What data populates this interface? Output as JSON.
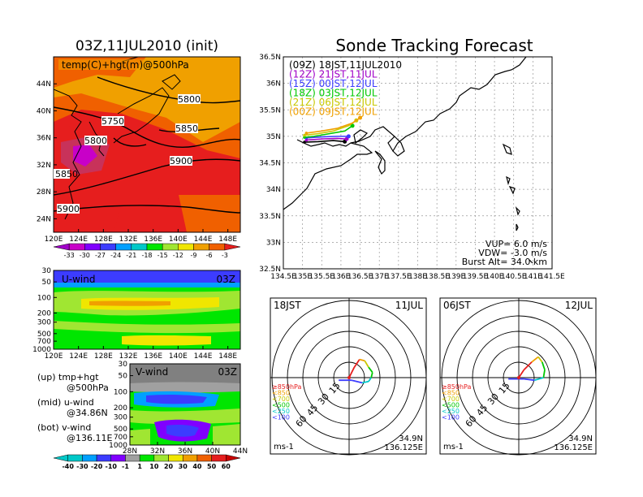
{
  "map_panel": {
    "title": "03Z,11JUL2010 (init)",
    "label": "temp(C)+hgt(m)@500hPa",
    "lat_ticks": [
      "44N",
      "40N",
      "36N",
      "32N",
      "28N",
      "24N"
    ],
    "lon_ticks": [
      "120E",
      "124E",
      "128E",
      "132E",
      "136E",
      "140E",
      "144E",
      "148E"
    ],
    "contours": [
      "5750",
      "5800",
      "5800",
      "5850",
      "5900",
      "5900",
      "5850"
    ],
    "colorbar_ticks": [
      "-33",
      "-30",
      "-27",
      "-24",
      "-21",
      "-18",
      "-15",
      "-12",
      "-9",
      "-6",
      "-3"
    ],
    "colorbar_colors": [
      "#a000c8",
      "#c800c8",
      "#8000ff",
      "#3c3cff",
      "#00a0ff",
      "#00c8c8",
      "#00e600",
      "#a0e632",
      "#f0e600",
      "#f0a000",
      "#f06000",
      "#e61e1e"
    ]
  },
  "uwind_panel": {
    "label": "U-wind",
    "time": "03Z",
    "p_ticks": [
      "30",
      "50",
      "100",
      "200",
      "300",
      "500",
      "700",
      "1000"
    ],
    "lon_ticks": [
      "120E",
      "124E",
      "128E",
      "132E",
      "136E",
      "140E",
      "144E",
      "148E"
    ]
  },
  "vwind_panel": {
    "label": "V-wind",
    "time": "03Z",
    "p_ticks": [
      "30",
      "50",
      "100",
      "200",
      "300",
      "500",
      "700",
      "1000"
    ],
    "lat_ticks": [
      "28N",
      "32N",
      "36N",
      "40N",
      "44N"
    ]
  },
  "wind_colorbar": {
    "ticks": [
      "-40",
      "-30",
      "-20",
      "-10",
      "-1",
      "1",
      "10",
      "20",
      "30",
      "40",
      "50",
      "60"
    ],
    "colors": [
      "#00c8c8",
      "#00a0ff",
      "#3c3cff",
      "#8000ff",
      "#a0a0a0",
      "#00e600",
      "#a0e632",
      "#f0e600",
      "#f0a000",
      "#f06000",
      "#e61e1e",
      "#c80000"
    ]
  },
  "side_legend": [
    {
      "top": "(up)  tmp+hgt",
      "bottom": "@500hPa"
    },
    {
      "top": "(mid)  u-wind",
      "bottom": "@34.86N"
    },
    {
      "top": "(bot)  v-wind",
      "bottom": "@136.11E"
    }
  ],
  "forecast": {
    "title": "Sonde Tracking Forecast",
    "lat_ticks": [
      "36.5N",
      "36N",
      "35.5N",
      "35N",
      "34.5N",
      "34N",
      "33.5N",
      "33N",
      "32.5N"
    ],
    "lon_ticks": [
      "134.5E",
      "135E",
      "135.5E",
      "136E",
      "136.5E",
      "137E",
      "137.5E",
      "138E",
      "138.5E",
      "139E",
      "139.5E",
      "140E",
      "140.5E",
      "141E",
      "141.5E"
    ],
    "launches": [
      {
        "label": "(09Z)  18JST,11JUL2010",
        "color": "#000000"
      },
      {
        "label": "(12Z)  21JST,11JUL",
        "color": "#a000c8"
      },
      {
        "label": "(15Z)  00JST,12JUL",
        "color": "#3c3cff"
      },
      {
        "label": "(18Z)  03JST,12JUL",
        "color": "#00c800"
      },
      {
        "label": "(21Z)  06JST,12JUL",
        "color": "#c8c800"
      },
      {
        "label": "(00Z)  09JST,12JUL",
        "color": "#f0a000"
      }
    ],
    "info": [
      "VUP=  6.0  m/s",
      "VDW= -3.0  m/s",
      "Burst Alt=  34.0  km"
    ]
  },
  "hodographs": [
    {
      "time": "18JST",
      "date": "11JUL",
      "unit": "ms-1",
      "lat": "34.9N",
      "lon": "136.125E",
      "ring_labels": [
        "15",
        "30",
        "45",
        "60"
      ],
      "levels": [
        {
          "label": "≥850hPa",
          "color": "#e61e1e"
        },
        {
          "label": "<850",
          "color": "#f0a000"
        },
        {
          "label": "<700",
          "color": "#c8c800"
        },
        {
          "label": "<500",
          "color": "#00c800"
        },
        {
          "label": "<250",
          "color": "#00c8c8"
        },
        {
          "label": "<100",
          "color": "#3c3cff"
        }
      ]
    },
    {
      "time": "06JST",
      "date": "12JUL",
      "unit": "ms-1",
      "lat": "34.9N",
      "lon": "136.125E",
      "ring_labels": [
        "15",
        "30",
        "45",
        "60"
      ],
      "levels": [
        {
          "label": "≥850hPa",
          "color": "#e61e1e"
        },
        {
          "label": "<850",
          "color": "#f0a000"
        },
        {
          "label": "<700",
          "color": "#c8c800"
        },
        {
          "label": "<500",
          "color": "#00c800"
        },
        {
          "label": "<250",
          "color": "#00c8c8"
        },
        {
          "label": "<100",
          "color": "#3c3cff"
        }
      ]
    }
  ],
  "chart_data": [
    {
      "type": "heatmap",
      "title": "03Z,11JUL2010 (init)",
      "subtitle": "temp(C)+hgt(m)@500hPa",
      "xlabel": "",
      "ylabel": "",
      "xlim": [
        120,
        150
      ],
      "ylim": [
        22,
        48
      ],
      "x_ticks": [
        120,
        124,
        128,
        132,
        136,
        140,
        144,
        148
      ],
      "y_ticks": [
        24,
        28,
        32,
        36,
        40,
        44
      ],
      "colorbar": [
        -33,
        -30,
        -27,
        -24,
        -21,
        -18,
        -15,
        -12,
        -9,
        -6,
        -3
      ],
      "contour_labels": [
        5750,
        5800,
        5800,
        5850,
        5900,
        5900,
        5850
      ]
    },
    {
      "type": "line",
      "title": "Sonde Tracking Forecast",
      "xlabel": "",
      "ylabel": "",
      "xlim": [
        134.5,
        141.5
      ],
      "ylim": [
        32.5,
        36.5
      ],
      "grid": true,
      "series": [
        {
          "name": "(09Z)  18JST,11JUL2010",
          "x": [
            136.1,
            135.8,
            135.4,
            135.05
          ],
          "y": [
            34.9,
            34.92,
            34.9,
            34.89
          ]
        },
        {
          "name": "(12Z)  21JST,11JUL",
          "x": [
            136.15,
            135.9,
            135.5,
            135.1
          ],
          "y": [
            34.95,
            34.96,
            34.95,
            34.93
          ]
        },
        {
          "name": "(15Z)  00JST,12JUL",
          "x": [
            136.2,
            135.9,
            135.5,
            135.1
          ],
          "y": [
            35.0,
            35.0,
            34.99,
            34.97
          ]
        },
        {
          "name": "(18Z)  03JST,12JUL",
          "x": [
            136.3,
            136.1,
            135.7,
            135.3,
            135.05
          ],
          "y": [
            35.2,
            35.1,
            35.05,
            35.0,
            34.98
          ]
        },
        {
          "name": "(21Z)  06JST,12JUL",
          "x": [
            136.4,
            136.2,
            135.8,
            135.4,
            135.05
          ],
          "y": [
            35.3,
            35.2,
            35.1,
            35.05,
            35.02
          ]
        },
        {
          "name": "(00Z)  09JST,12JUL",
          "x": [
            136.5,
            136.3,
            135.9,
            135.5,
            135.1
          ],
          "y": [
            35.35,
            35.25,
            35.15,
            35.1,
            35.06
          ]
        }
      ]
    }
  ]
}
